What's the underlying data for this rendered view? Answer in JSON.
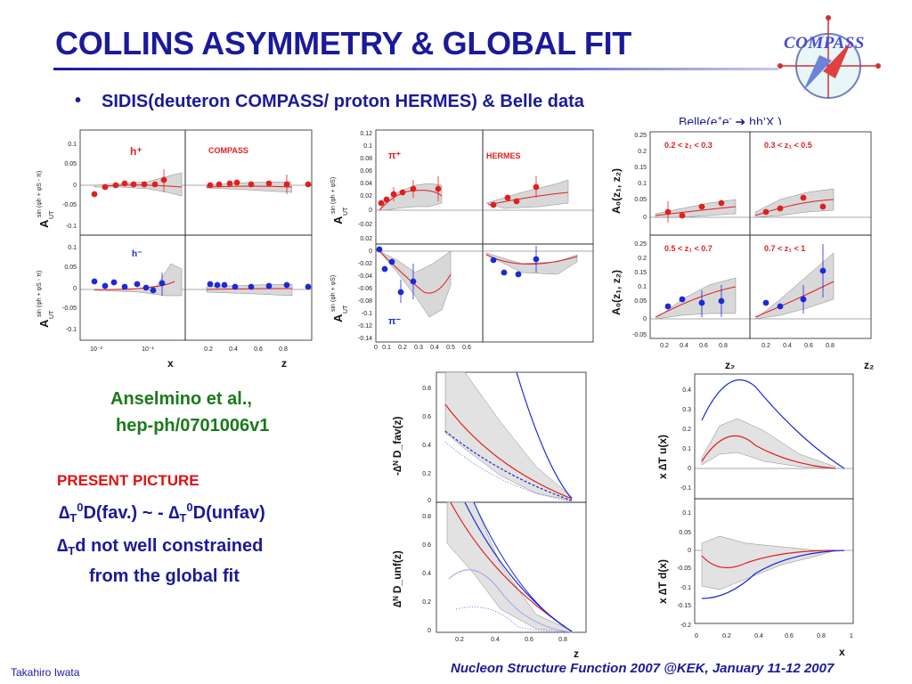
{
  "slide": {
    "title": "COLLINS ASYMMETRY & GLOBAL FIT",
    "logo_text": "COMPASS",
    "bullet": "•",
    "bullet_text": "SIDIS(deuteron COMPASS/ proton HERMES)  &  Belle data",
    "belle_label": {
      "prefix": "Belle(e",
      "sup1": "+",
      "mid": "e",
      "sup2": "-",
      "arrow": " ➔ ",
      "suffix": "hh’X )"
    },
    "reference": {
      "authors": "Anselmino et al.,",
      "arxiv": "hep-ph/0701006v1"
    },
    "present_picture": "PRESENT PICTURE",
    "statement1": {
      "delta": "∆",
      "sub": "T",
      "sup": "0",
      "fav": "D(fav.) ~ - ",
      "unfav": "D(unfav)"
    },
    "statement2": {
      "delta": "∆",
      "sub": "T",
      "text": "d not well constrained"
    },
    "statement3": "from the global fit",
    "footer_left": "Takahiro Iwata",
    "footer_right": "Nucleon Structure Function 2007 @KEK,  January 11-12 2007"
  },
  "figures": {
    "compass": {
      "label_hplus": "h⁺",
      "label_hminus": "h⁻",
      "experiment": "COMPASS",
      "ylabel": "A",
      "ylabel_sub": "UT",
      "ylabel_sup": "sin (φh + φS - π)",
      "xlabel_left": "x",
      "xlabel_right": "z",
      "yticks": [
        "0.1",
        "0.05",
        "0",
        "-0.05",
        "-0.1"
      ],
      "xticks_left": [
        "10⁻²",
        "10⁻¹"
      ],
      "xticks_right": [
        "0.2",
        "0.4",
        "0.6",
        "0.8"
      ]
    },
    "hermes": {
      "label_piplus": "π⁺",
      "label_piminus": "π⁻",
      "experiment": "HERMES",
      "ylabel": "A",
      "ylabel_sub": "UT",
      "ylabel_sup": "sin (φh + φS)",
      "yticks_top": [
        "0.12",
        "0.1",
        "0.08",
        "0.06",
        "0.04",
        "0.02",
        "0",
        "-0.02"
      ],
      "yticks_bot": [
        "0.02",
        "0",
        "-0.02",
        "-0.04",
        "-0.06",
        "-0.08",
        "-0.1",
        "-0.12",
        "-0.14"
      ],
      "xticks": [
        "0",
        "0.1",
        "0.2",
        "0.3",
        "0.4",
        "0.5",
        "0.6"
      ]
    },
    "belle": {
      "bins": [
        "0.2 < z₁ < 0.3",
        "0.3 < z₁ < 0.5",
        "0.5 < z₁ < 0.7",
        "0.7 < z₁ < 1"
      ],
      "ylabel": "A₀(z₁, z₂)",
      "xlabel": "z₂",
      "yticks_top": [
        "0.25",
        "0.2",
        "0.15",
        "0.1",
        "0.05",
        "0"
      ],
      "yticks_bot": [
        "0.25",
        "0.2",
        "0.15",
        "0.1",
        "0.05",
        "0",
        "-0.05"
      ],
      "xticks": [
        "0.2",
        "0.4",
        "0.6",
        "0.8"
      ]
    },
    "collins": {
      "ylabel_top": "-∆ᴺ D_fav(z)",
      "ylabel_bot": "∆ᴺ D_unf(z)",
      "xlabel": "z",
      "yticks_top": [
        "0.8",
        "0.6",
        "0.4",
        "0.2",
        "0"
      ],
      "yticks_bot": [
        "0.8",
        "0.6",
        "0.4",
        "0.2",
        "0"
      ],
      "xticks": [
        "0.2",
        "0.4",
        "0.6",
        "0.8"
      ]
    },
    "transversity": {
      "ylabel_top": "x ∆T u(x)",
      "ylabel_bot": "x ∆T d(x)",
      "xlabel": "x",
      "yticks_top": [
        "0.4",
        "0.3",
        "0.2",
        "0.1",
        "0",
        "-0.1"
      ],
      "yticks_bot": [
        "0.1",
        "0.05",
        "0",
        "-0.05",
        "-0.1",
        "-0.15",
        "-0.2"
      ],
      "xticks": [
        "0",
        "0.2",
        "0.4",
        "0.6",
        "0.8",
        "1"
      ]
    }
  },
  "colors": {
    "title": "#1a1a9a",
    "reference": "#1a7a1a",
    "present": "#e01010",
    "data_red": "#e02020",
    "data_blue": "#1a2ad8",
    "band": "#d8d8d8"
  }
}
